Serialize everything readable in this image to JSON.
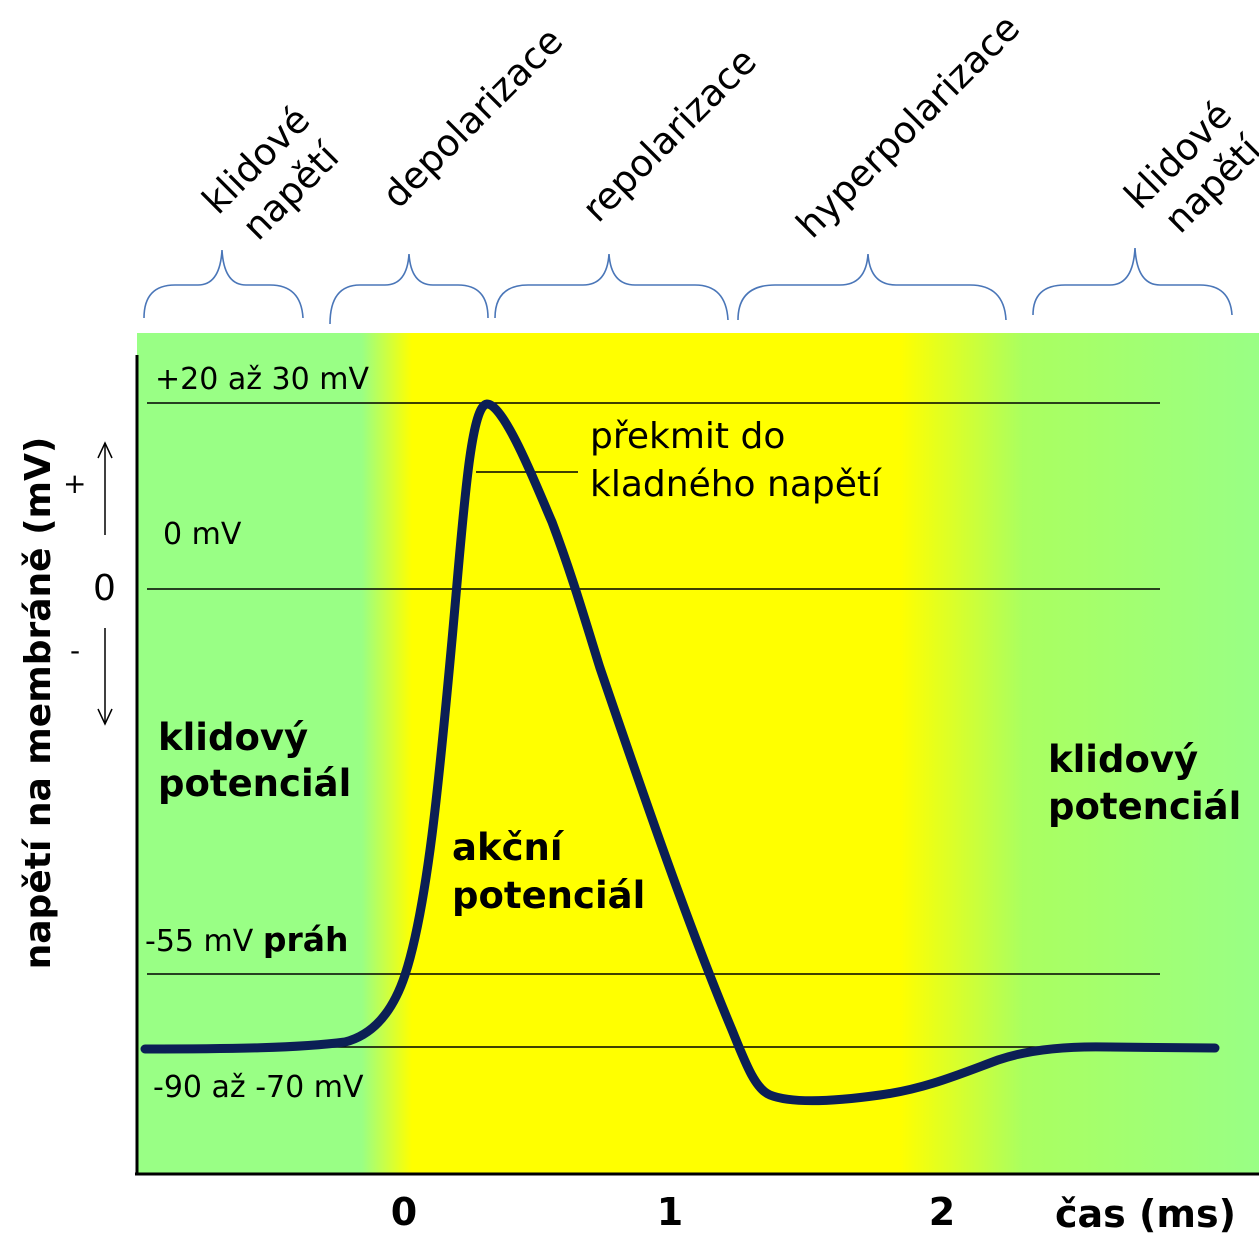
{
  "phases": [
    {
      "line1": "klidové",
      "line2": "napětí"
    },
    {
      "line1": "depolarizace"
    },
    {
      "line1": "repolarizace"
    },
    {
      "line1": "hyperpolarizace"
    },
    {
      "line1": "klidové",
      "line2": "napětí"
    }
  ],
  "levels": {
    "peak": "+20 až 30 mV",
    "zero": "0 mV",
    "threshold_value": "-55 mV",
    "threshold_word": "práh",
    "rest": "-90 až -70 mV"
  },
  "annotations": {
    "overshoot_line1": "překmit do",
    "overshoot_line2": "kladného napětí",
    "rest_left_line1": "klidový",
    "rest_left_line2": "potenciál",
    "action_line1": "akční",
    "action_line2": "potenciál",
    "rest_right_line1": "klidový",
    "rest_right_line2": "potenciál"
  },
  "axis": {
    "y_label": "napětí na membráně (mV)",
    "plus": "+",
    "zero": "0",
    "minus": "-",
    "x_ticks": [
      "0",
      "1",
      "2"
    ],
    "x_label": "čas (ms)"
  },
  "colors": {
    "rest_zone": "#99ff85",
    "action_zone": "#ffff00",
    "curve": "#0b1f55",
    "braces": "#4a76b8"
  }
}
